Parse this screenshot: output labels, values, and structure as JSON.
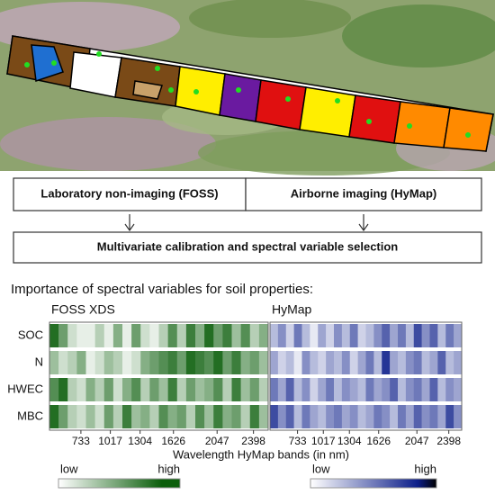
{
  "workflow": {
    "sources": [
      "Laboratory non-imaging (FOSS)",
      "Airborne imaging (HyMap)"
    ],
    "step": "Multivariate calibration and spectral variable selection"
  },
  "heatmap_title": "Importance of spectral variables for soil properties:",
  "chart_data": {
    "type": "heatmap",
    "xlabel": "Wavelength HyMap bands (in nm)",
    "xlim": [
      430,
      2540
    ],
    "xticks": [
      733,
      1017,
      1304,
      1626,
      2047,
      2398
    ],
    "panels": [
      {
        "title": "FOSS XDS",
        "color": "#0b5e0b",
        "legend": {
          "low": "low",
          "high": "high"
        },
        "rows": [
          {
            "label": "SOC",
            "values": [
              0.9,
              0.6,
              0.2,
              0.1,
              0.1,
              0.3,
              0.1,
              0.5,
              0.1,
              0.6,
              0.2,
              0.1,
              0.3,
              0.7,
              0.3,
              0.8,
              0.5,
              0.9,
              0.6,
              0.8,
              0.4,
              0.7,
              0.3,
              0.5
            ]
          },
          {
            "label": "N",
            "values": [
              0.4,
              0.2,
              0.3,
              0.5,
              0.1,
              0.2,
              0.4,
              0.3,
              0.1,
              0.2,
              0.5,
              0.6,
              0.7,
              0.8,
              0.6,
              0.9,
              0.8,
              0.7,
              0.9,
              0.6,
              0.8,
              0.5,
              0.6,
              0.4
            ]
          },
          {
            "label": "HWEC",
            "values": [
              0.7,
              0.9,
              0.3,
              0.2,
              0.5,
              0.3,
              0.6,
              0.2,
              0.5,
              0.7,
              0.3,
              0.6,
              0.4,
              0.8,
              0.3,
              0.6,
              0.4,
              0.5,
              0.7,
              0.3,
              0.8,
              0.4,
              0.6,
              0.3
            ]
          },
          {
            "label": "MBC",
            "values": [
              0.9,
              0.6,
              0.3,
              0.2,
              0.4,
              0.2,
              0.6,
              0.3,
              0.8,
              0.4,
              0.5,
              0.3,
              0.7,
              0.5,
              0.6,
              0.3,
              0.7,
              0.4,
              0.8,
              0.5,
              0.6,
              0.3,
              0.8,
              0.4
            ]
          }
        ]
      },
      {
        "title": "HyMap",
        "color": "#0d1f8a",
        "legend": {
          "low": "low",
          "high": "high"
        },
        "rows": [
          {
            "label": "SOC",
            "values": [
              0.3,
              0.5,
              0.2,
              0.6,
              0.3,
              0.1,
              0.4,
              0.2,
              0.5,
              0.3,
              0.6,
              0.2,
              0.3,
              0.5,
              0.7,
              0.4,
              0.6,
              0.3,
              0.8,
              0.5,
              0.7,
              0.3,
              0.6,
              0.4
            ]
          },
          {
            "label": "N",
            "values": [
              0.4,
              0.2,
              0.3,
              0.1,
              0.5,
              0.3,
              0.2,
              0.4,
              0.3,
              0.5,
              0.2,
              0.4,
              0.6,
              0.3,
              0.9,
              0.4,
              0.3,
              0.5,
              0.6,
              0.3,
              0.4,
              0.7,
              0.3,
              0.4
            ]
          },
          {
            "label": "HWEC",
            "values": [
              0.6,
              0.4,
              0.7,
              0.3,
              0.5,
              0.2,
              0.4,
              0.6,
              0.3,
              0.5,
              0.4,
              0.3,
              0.6,
              0.4,
              0.5,
              0.7,
              0.3,
              0.5,
              0.6,
              0.4,
              0.7,
              0.3,
              0.5,
              0.4
            ]
          },
          {
            "label": "MBC",
            "values": [
              0.8,
              0.5,
              0.7,
              0.3,
              0.6,
              0.4,
              0.3,
              0.5,
              0.6,
              0.4,
              0.5,
              0.3,
              0.4,
              0.6,
              0.5,
              0.3,
              0.6,
              0.4,
              0.7,
              0.5,
              0.6,
              0.4,
              0.8,
              0.5
            ]
          }
        ]
      }
    ]
  }
}
